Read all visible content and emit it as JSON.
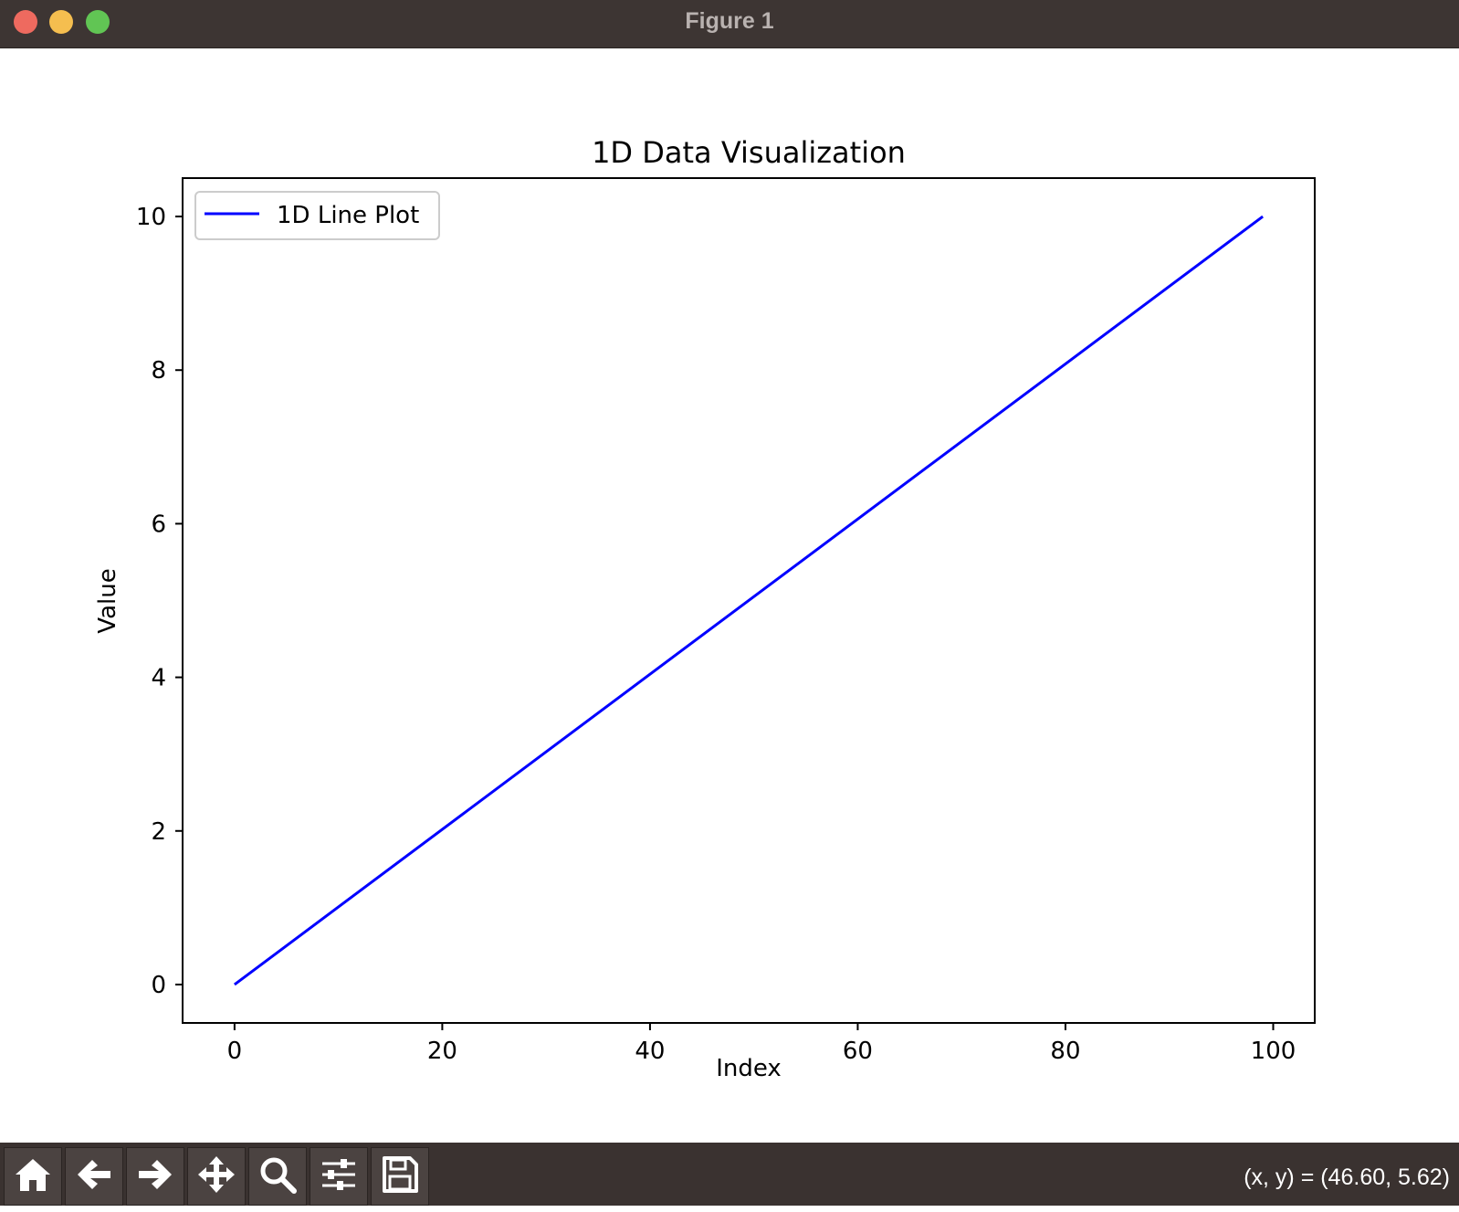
{
  "window": {
    "title": "Figure 1"
  },
  "toolbar": {
    "buttons": [
      {
        "name": "home",
        "icon": "home-icon"
      },
      {
        "name": "back",
        "icon": "arrow-left-icon"
      },
      {
        "name": "forward",
        "icon": "arrow-right-icon"
      },
      {
        "name": "pan",
        "icon": "move-icon"
      },
      {
        "name": "zoom",
        "icon": "magnifier-icon"
      },
      {
        "name": "configure-subplots",
        "icon": "sliders-icon"
      },
      {
        "name": "save",
        "icon": "floppy-disk-icon"
      }
    ],
    "coordinates": "(x, y) = (46.60, 5.62)"
  },
  "colors": {
    "line": "#0000ff",
    "titlebar": "#3d3533",
    "toolbar": "#3a3230"
  },
  "chart_data": {
    "type": "line",
    "title": "1D Data Visualization",
    "xlabel": "Index",
    "ylabel": "Value",
    "xlim": [
      -5,
      104
    ],
    "ylim": [
      -0.5,
      10.5
    ],
    "xticks": [
      0,
      20,
      40,
      60,
      80,
      100
    ],
    "yticks": [
      0,
      2,
      4,
      6,
      8,
      10
    ],
    "xtick_labels": [
      "0",
      "20",
      "40",
      "60",
      "80",
      "100"
    ],
    "ytick_labels": [
      "0",
      "2",
      "4",
      "6",
      "8",
      "10"
    ],
    "grid": false,
    "legend_placement": "upper-left",
    "series": [
      {
        "name": "1D Line Plot",
        "color": "#0000ff",
        "x": [
          0,
          99
        ],
        "y": [
          0,
          10
        ]
      }
    ]
  }
}
